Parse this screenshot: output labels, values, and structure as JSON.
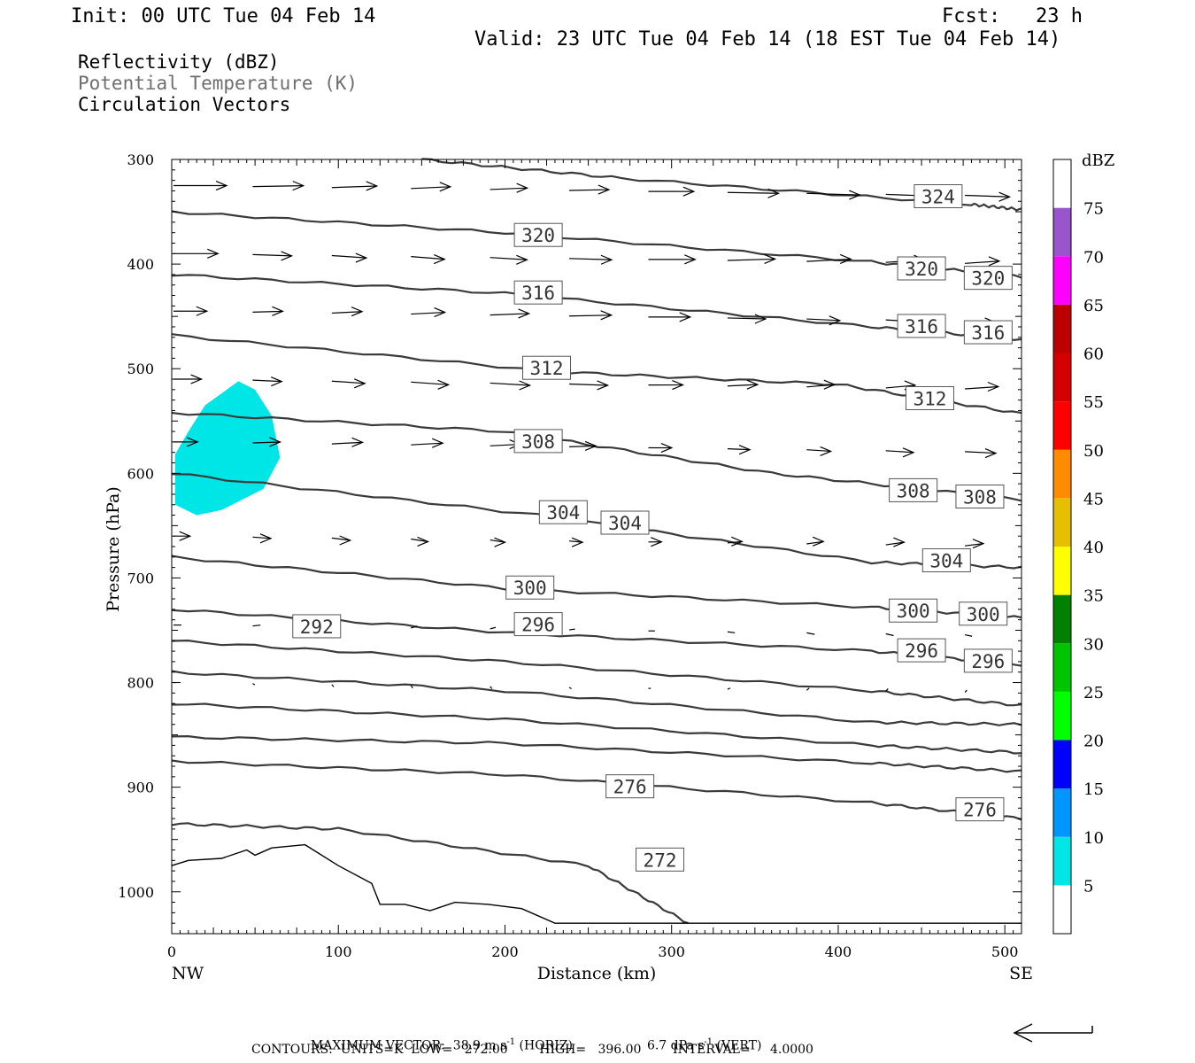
{
  "header": {
    "init": "Init: 00 UTC Tue 04 Feb 14",
    "fcst": "Fcst:   23 h",
    "valid": "Valid: 23 UTC Tue 04 Feb 14 (18 EST Tue 04 Feb 14)"
  },
  "fields": [
    {
      "label": "Reflectivity (dBZ)",
      "color": "#000000"
    },
    {
      "label": "Potential Temperature (K)",
      "color": "#6e6e6e"
    },
    {
      "label": "Circulation Vectors",
      "color": "#000000"
    }
  ],
  "footer": {
    "line1a": "MAXIMUM VECTOR:  38.9 m s",
    "line1b": " (HORIZ)",
    "line1c": "6.7 dPa s",
    "line1d": " (VERT)",
    "exponent": "-1",
    "line2": "CONTOURS:  UNITS=K  LOW=   272.00        HIGH=   396.00        INTERVAL=     4.0000"
  },
  "chart_data": {
    "type": "cross-section",
    "xlabel": "Distance (km)",
    "ylabel": "Pressure (hPa)",
    "xlim": [
      0,
      510
    ],
    "ylim": [
      300,
      1040
    ],
    "x_ticks": [
      0,
      100,
      200,
      300,
      400,
      500
    ],
    "y_ticks": [
      300,
      400,
      500,
      600,
      700,
      800,
      900,
      1000
    ],
    "x_end_labels": {
      "left": "NW",
      "right": "SE"
    },
    "contour_color": "#3a3a3a",
    "theta_contours": [
      {
        "value": 324,
        "pts": [
          [
            150,
            300
          ],
          [
            270,
            318
          ],
          [
            480,
            343
          ],
          [
            510,
            348
          ]
        ],
        "labels": [
          [
            460,
            336,
            "324"
          ]
        ]
      },
      {
        "value": 320,
        "pts": [
          [
            0,
            350
          ],
          [
            200,
            370
          ],
          [
            420,
            398
          ],
          [
            510,
            412
          ]
        ],
        "labels": [
          [
            220,
            373,
            "320"
          ],
          [
            450,
            405,
            "320"
          ],
          [
            490,
            414,
            "320"
          ]
        ]
      },
      {
        "value": 316,
        "pts": [
          [
            0,
            410
          ],
          [
            200,
            428
          ],
          [
            420,
            460
          ],
          [
            510,
            472
          ]
        ],
        "labels": [
          [
            220,
            428,
            "316"
          ],
          [
            450,
            460,
            "316"
          ],
          [
            490,
            466,
            "316"
          ]
        ]
      },
      {
        "value": 312,
        "pts": [
          [
            0,
            468
          ],
          [
            230,
            503
          ],
          [
            400,
            515
          ],
          [
            510,
            543
          ]
        ],
        "labels": [
          [
            225,
            500,
            "312"
          ],
          [
            455,
            529,
            "312"
          ]
        ]
      },
      {
        "value": 308,
        "pts": [
          [
            0,
            542
          ],
          [
            200,
            560
          ],
          [
            360,
            600
          ],
          [
            510,
            625
          ]
        ],
        "labels": [
          [
            220,
            570,
            "308"
          ],
          [
            445,
            617,
            "308"
          ],
          [
            485,
            623,
            "308"
          ]
        ]
      },
      {
        "value": 304,
        "pts": [
          [
            0,
            600
          ],
          [
            220,
            640
          ],
          [
            420,
            685
          ],
          [
            510,
            690
          ]
        ],
        "labels": [
          [
            235,
            638,
            "304"
          ],
          [
            272,
            648,
            "304"
          ],
          [
            465,
            684,
            "304"
          ]
        ]
      },
      {
        "value": 300,
        "pts": [
          [
            0,
            680
          ],
          [
            200,
            710
          ],
          [
            420,
            728
          ],
          [
            510,
            738
          ]
        ],
        "labels": [
          [
            215,
            710,
            "300"
          ],
          [
            445,
            732,
            "300"
          ],
          [
            487,
            735,
            "300"
          ]
        ]
      },
      {
        "value": 296,
        "pts": [
          [
            0,
            730
          ],
          [
            200,
            752
          ],
          [
            420,
            770
          ],
          [
            510,
            783
          ]
        ],
        "labels": [
          [
            220,
            745,
            "296"
          ],
          [
            450,
            770,
            "296"
          ],
          [
            490,
            780,
            "296"
          ]
        ]
      },
      {
        "value": 292,
        "pts": [
          [
            0,
            760
          ],
          [
            200,
            780
          ],
          [
            420,
            808
          ],
          [
            510,
            822
          ]
        ],
        "labels": [
          [
            87,
            747,
            "292"
          ]
        ]
      },
      {
        "value": 288,
        "pts": [
          [
            0,
            790
          ],
          [
            200,
            808
          ],
          [
            420,
            838
          ],
          [
            510,
            840
          ]
        ],
        "labels": []
      },
      {
        "value": 284,
        "pts": [
          [
            0,
            820
          ],
          [
            200,
            835
          ],
          [
            420,
            860
          ],
          [
            510,
            867
          ]
        ],
        "labels": []
      },
      {
        "value": 280,
        "pts": [
          [
            0,
            852
          ],
          [
            200,
            858
          ],
          [
            420,
            877
          ],
          [
            510,
            885
          ]
        ],
        "labels": []
      },
      {
        "value": 276,
        "pts": [
          [
            0,
            875
          ],
          [
            200,
            888
          ],
          [
            420,
            915
          ],
          [
            510,
            930
          ]
        ],
        "labels": [
          [
            275,
            900,
            "276"
          ],
          [
            485,
            922,
            "276"
          ]
        ]
      },
      {
        "value": 272,
        "pts": [
          [
            0,
            935
          ],
          [
            100,
            940
          ],
          [
            250,
            975
          ],
          [
            310,
            1030
          ]
        ],
        "labels": [
          [
            293,
            970,
            "272"
          ]
        ]
      }
    ],
    "reflectivity_area": {
      "dbz_min": 5,
      "dbz_max": 10,
      "color": "#00e5e5",
      "polygon": [
        [
          2,
          582
        ],
        [
          10,
          560
        ],
        [
          20,
          535
        ],
        [
          40,
          512
        ],
        [
          50,
          520
        ],
        [
          60,
          545
        ],
        [
          65,
          585
        ],
        [
          55,
          615
        ],
        [
          30,
          635
        ],
        [
          15,
          640
        ],
        [
          2,
          630
        ]
      ]
    },
    "colorbar": {
      "unit": "dBZ",
      "levels": [
        5,
        10,
        15,
        20,
        25,
        30,
        35,
        40,
        45,
        50,
        55,
        60,
        65,
        70,
        75
      ],
      "colors": [
        "#00e5e5",
        "#0096ff",
        "#0000ff",
        "#00ff00",
        "#00c400",
        "#008000",
        "#ffff00",
        "#e6c000",
        "#ff8c00",
        "#ff0000",
        "#d40000",
        "#bc0000",
        "#ff00ff",
        "#9955cc",
        "#ffffff"
      ]
    },
    "max_vector": {
      "horiz_m_s": 38.9,
      "vert_dPa_s": 6.7
    },
    "contour_units": "K",
    "contour_low": 272.0,
    "contour_high": 396.0,
    "contour_interval": 4.0
  }
}
